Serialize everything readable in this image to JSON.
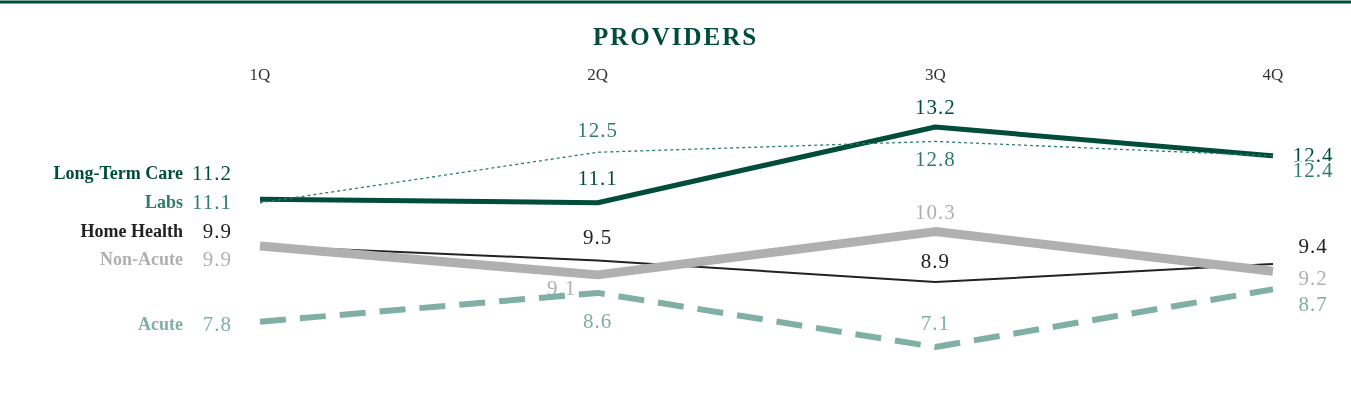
{
  "chart_data": {
    "type": "line",
    "title": "PROVIDERS",
    "categories": [
      "1Q",
      "2Q",
      "3Q",
      "4Q"
    ],
    "data_labels": true,
    "series": [
      {
        "name": "Long-Term Care",
        "color": "#004d3b",
        "line_style": "solid",
        "values": [
          11.2,
          11.1,
          13.2,
          12.4
        ]
      },
      {
        "name": "Labs",
        "color": "#2e7d69",
        "line_style": "dashed",
        "values": [
          11.1,
          12.5,
          12.8,
          12.4
        ]
      },
      {
        "name": "Home Health",
        "color": "#222222",
        "line_style": "solid",
        "values": [
          9.9,
          9.5,
          8.9,
          9.4
        ]
      },
      {
        "name": "Non-Acute",
        "color": "#b0b0b0",
        "line_style": "solid",
        "values": [
          9.9,
          9.1,
          10.3,
          9.2
        ]
      },
      {
        "name": "Acute",
        "color": "#80afa4",
        "line_style": "dashed",
        "values": [
          7.8,
          8.6,
          7.1,
          8.7
        ]
      }
    ]
  }
}
